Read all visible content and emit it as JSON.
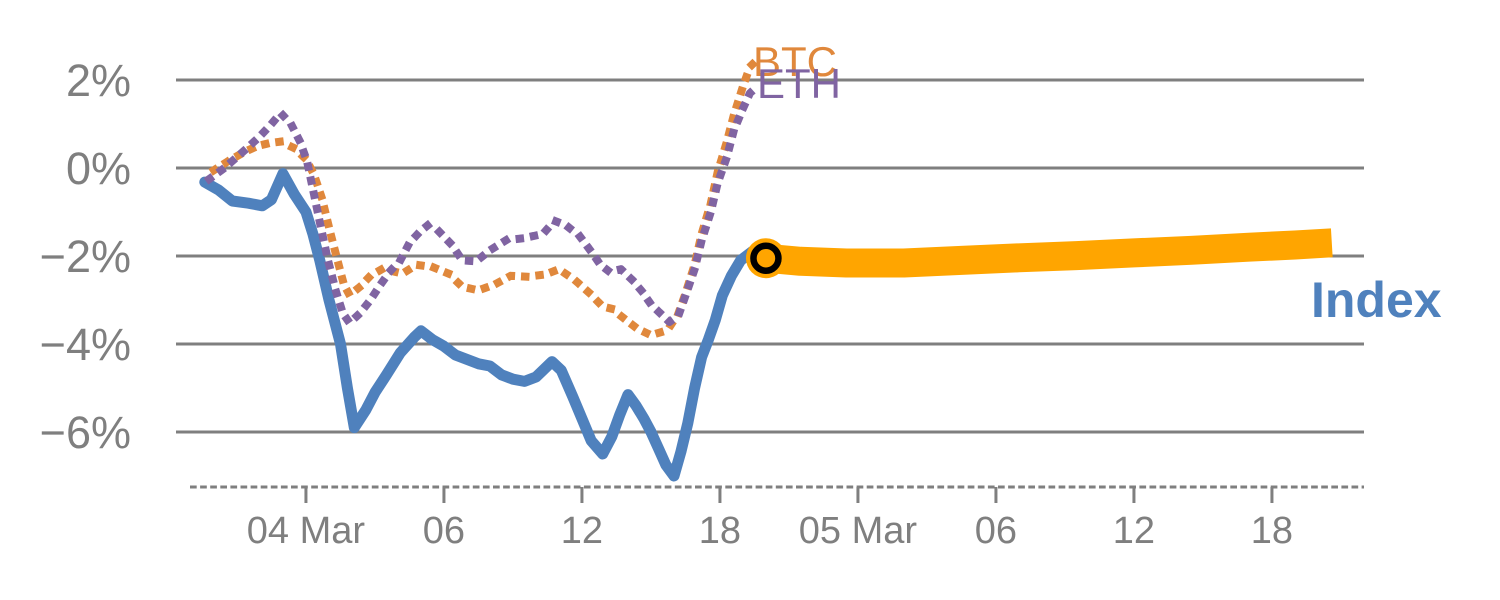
{
  "chart_data": {
    "type": "line",
    "title": "",
    "x_axis": {
      "unit": "hours_from_04_Mar_00:00",
      "range": [
        -5.65,
        46.0
      ],
      "axis_style": "dashed",
      "ticks": [
        {
          "t": 0,
          "label": "04 Mar"
        },
        {
          "t": 6,
          "label": "06"
        },
        {
          "t": 12,
          "label": "12"
        },
        {
          "t": 18,
          "label": "18"
        },
        {
          "t": 24,
          "label": "05 Mar"
        },
        {
          "t": 30,
          "label": "06"
        },
        {
          "t": 36,
          "label": "12"
        },
        {
          "t": 42,
          "label": "18"
        }
      ]
    },
    "y_axis": {
      "unit": "percent_change",
      "range": [
        2,
        -6
      ],
      "grid": true,
      "ticks": [
        {
          "v": 2,
          "label": "2%"
        },
        {
          "v": 0,
          "label": "0%"
        },
        {
          "v": -2,
          "label": "−2%"
        },
        {
          "v": -4,
          "label": "−4%"
        },
        {
          "v": -6,
          "label": "−6%"
        }
      ]
    },
    "legend_position": "inline-end-of-line-labels",
    "series": [
      {
        "name": "BTC",
        "color": "#e0883c",
        "style": "dotted",
        "points": [
          [
            -4.0,
            -0.05
          ],
          [
            -3.4,
            0.15
          ],
          [
            -2.7,
            0.36
          ],
          [
            -2.1,
            0.5
          ],
          [
            -1.55,
            0.57
          ],
          [
            -1.1,
            0.6
          ],
          [
            -0.5,
            0.45
          ],
          [
            0,
            0.2
          ],
          [
            0.35,
            -0.15
          ],
          [
            0.7,
            -0.7
          ],
          [
            1.05,
            -1.45
          ],
          [
            1.4,
            -2.15
          ],
          [
            1.65,
            -2.65
          ],
          [
            1.9,
            -2.89
          ],
          [
            2.35,
            -2.7
          ],
          [
            2.8,
            -2.45
          ],
          [
            3.3,
            -2.3
          ],
          [
            3.8,
            -2.35
          ],
          [
            4.2,
            -2.4
          ],
          [
            4.8,
            -2.2
          ],
          [
            5.5,
            -2.25
          ],
          [
            6.2,
            -2.4
          ],
          [
            6.8,
            -2.7
          ],
          [
            7.5,
            -2.78
          ],
          [
            8.2,
            -2.65
          ],
          [
            8.9,
            -2.45
          ],
          [
            9.6,
            -2.47
          ],
          [
            10.4,
            -2.42
          ],
          [
            11.0,
            -2.3
          ],
          [
            11.7,
            -2.55
          ],
          [
            12.3,
            -2.83
          ],
          [
            12.9,
            -3.15
          ],
          [
            13.3,
            -3.2
          ],
          [
            13.9,
            -3.45
          ],
          [
            14.4,
            -3.65
          ],
          [
            15.0,
            -3.8
          ],
          [
            15.5,
            -3.72
          ],
          [
            15.8,
            -3.62
          ],
          [
            16.2,
            -3.3
          ],
          [
            16.5,
            -2.85
          ],
          [
            16.9,
            -2.2
          ],
          [
            17.2,
            -1.5
          ],
          [
            17.6,
            -0.8
          ],
          [
            17.9,
            -0.1
          ],
          [
            18.3,
            0.6
          ],
          [
            18.6,
            1.2
          ],
          [
            19.0,
            1.85
          ],
          [
            19.3,
            2.3
          ],
          [
            19.6,
            2.45
          ]
        ]
      },
      {
        "name": "ETH",
        "color": "#8064a2",
        "style": "dotted",
        "points": [
          [
            -4.2,
            -0.25
          ],
          [
            -3.6,
            -0.02
          ],
          [
            -3.0,
            0.25
          ],
          [
            -2.5,
            0.48
          ],
          [
            -2.0,
            0.72
          ],
          [
            -1.5,
            1.0
          ],
          [
            -1.1,
            1.25
          ],
          [
            -0.65,
            1.0
          ],
          [
            -0.26,
            0.6
          ],
          [
            0.05,
            0.15
          ],
          [
            0.35,
            -0.6
          ],
          [
            0.65,
            -1.35
          ],
          [
            0.96,
            -2.1
          ],
          [
            1.3,
            -2.8
          ],
          [
            1.6,
            -3.3
          ],
          [
            1.9,
            -3.52
          ],
          [
            2.35,
            -3.3
          ],
          [
            2.8,
            -3.0
          ],
          [
            3.2,
            -2.68
          ],
          [
            3.65,
            -2.35
          ],
          [
            4.1,
            -2.1
          ],
          [
            4.5,
            -1.7
          ],
          [
            4.95,
            -1.45
          ],
          [
            5.3,
            -1.3
          ],
          [
            5.8,
            -1.45
          ],
          [
            6.35,
            -1.75
          ],
          [
            6.8,
            -2.1
          ],
          [
            7.4,
            -2.12
          ],
          [
            8.0,
            -1.87
          ],
          [
            8.7,
            -1.64
          ],
          [
            9.4,
            -1.6
          ],
          [
            10.3,
            -1.5
          ],
          [
            10.8,
            -1.2
          ],
          [
            11.3,
            -1.3
          ],
          [
            11.9,
            -1.55
          ],
          [
            12.4,
            -1.9
          ],
          [
            12.8,
            -2.2
          ],
          [
            13.2,
            -2.36
          ],
          [
            13.7,
            -2.3
          ],
          [
            14.2,
            -2.55
          ],
          [
            14.6,
            -2.8
          ],
          [
            15.0,
            -3.1
          ],
          [
            15.5,
            -3.35
          ],
          [
            15.8,
            -3.5
          ],
          [
            16.2,
            -3.35
          ],
          [
            16.5,
            -2.9
          ],
          [
            16.9,
            -2.3
          ],
          [
            17.2,
            -1.65
          ],
          [
            17.6,
            -1.0
          ],
          [
            17.9,
            -0.35
          ],
          [
            18.3,
            0.25
          ],
          [
            18.6,
            0.85
          ],
          [
            19.0,
            1.35
          ],
          [
            19.3,
            1.7
          ],
          [
            19.6,
            1.84
          ]
        ]
      },
      {
        "name": "Index",
        "color": "#4f81bd",
        "style": "solid",
        "points": [
          [
            -4.4,
            -0.32
          ],
          [
            -3.8,
            -0.5
          ],
          [
            -3.2,
            -0.75
          ],
          [
            -2.5,
            -0.8
          ],
          [
            -1.9,
            -0.86
          ],
          [
            -1.5,
            -0.72
          ],
          [
            -1.0,
            -0.13
          ],
          [
            -0.5,
            -0.6
          ],
          [
            0,
            -1.0
          ],
          [
            0.3,
            -1.5
          ],
          [
            0.6,
            -2.1
          ],
          [
            1.0,
            -3.0
          ],
          [
            1.5,
            -4.0
          ],
          [
            1.8,
            -5.0
          ],
          [
            2.1,
            -5.9
          ],
          [
            2.6,
            -5.5
          ],
          [
            3.0,
            -5.1
          ],
          [
            3.5,
            -4.7
          ],
          [
            4.1,
            -4.2
          ],
          [
            4.7,
            -3.85
          ],
          [
            5.0,
            -3.7
          ],
          [
            5.5,
            -3.9
          ],
          [
            6.0,
            -4.05
          ],
          [
            6.5,
            -4.25
          ],
          [
            7.0,
            -4.35
          ],
          [
            7.5,
            -4.45
          ],
          [
            8.0,
            -4.5
          ],
          [
            8.5,
            -4.7
          ],
          [
            9.0,
            -4.8
          ],
          [
            9.5,
            -4.85
          ],
          [
            10.0,
            -4.75
          ],
          [
            10.3,
            -4.6
          ],
          [
            10.7,
            -4.4
          ],
          [
            11.1,
            -4.6
          ],
          [
            11.6,
            -5.2
          ],
          [
            12.0,
            -5.7
          ],
          [
            12.4,
            -6.2
          ],
          [
            12.9,
            -6.5
          ],
          [
            13.3,
            -6.1
          ],
          [
            13.65,
            -5.6
          ],
          [
            14.0,
            -5.15
          ],
          [
            14.35,
            -5.4
          ],
          [
            14.7,
            -5.7
          ],
          [
            15.0,
            -6.0
          ],
          [
            15.35,
            -6.4
          ],
          [
            15.65,
            -6.75
          ],
          [
            16.0,
            -7.0
          ],
          [
            16.3,
            -6.45
          ],
          [
            16.6,
            -5.8
          ],
          [
            16.9,
            -5.0
          ],
          [
            17.2,
            -4.3
          ],
          [
            17.5,
            -3.9
          ],
          [
            17.8,
            -3.45
          ],
          [
            18.1,
            -2.9
          ],
          [
            18.5,
            -2.45
          ],
          [
            18.9,
            -2.1
          ],
          [
            19.4,
            -1.9
          ],
          [
            20.0,
            -2.05
          ]
        ]
      },
      {
        "name": "Index projection",
        "color": "#ffa500",
        "style": "band",
        "points": [
          [
            20.0,
            -2.05
          ],
          [
            21.5,
            -2.12
          ],
          [
            23.5,
            -2.16
          ],
          [
            26.0,
            -2.16
          ],
          [
            28.5,
            -2.1
          ],
          [
            31.0,
            -2.04
          ],
          [
            33.5,
            -1.99
          ],
          [
            36.0,
            -1.93
          ],
          [
            38.5,
            -1.87
          ],
          [
            41.0,
            -1.8
          ],
          [
            43.0,
            -1.75
          ],
          [
            44.6,
            -1.7
          ]
        ]
      }
    ],
    "marker": {
      "t": 20.0,
      "v": -2.05,
      "fill": "#ffa500",
      "ring": "#000000",
      "meaning": "junction of actual index line and projected band"
    },
    "grid_color": "#7f7f7f",
    "axis_color": "#7f7f7f",
    "label_color": "#7f7f7f"
  }
}
